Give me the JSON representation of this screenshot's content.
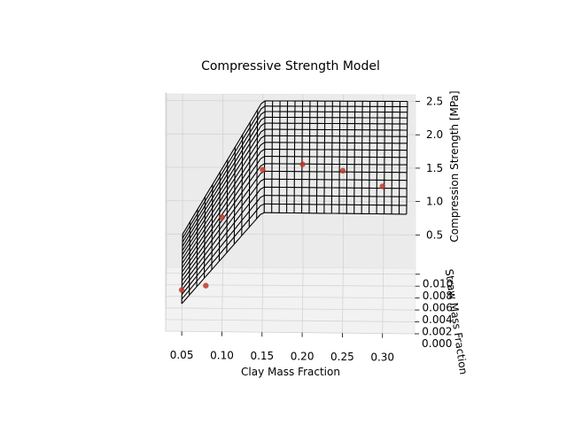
{
  "chart_data": {
    "type": "surface3d",
    "title": "Compressive Strength Model",
    "xlabel": "Clay Mass Fraction",
    "ylabel": "Straw Mass Fraction",
    "zlabel": "Compression Strength [MPa]",
    "x_ticks": [
      "0.05",
      "0.10",
      "0.15",
      "0.20",
      "0.25",
      "0.30"
    ],
    "y_ticks": [
      "0.000",
      "0.002",
      "0.004",
      "0.006",
      "0.008",
      "0.010"
    ],
    "z_ticks": [
      "0.5",
      "1.0",
      "1.5",
      "2.0",
      "2.5"
    ],
    "xlim": [
      0.03,
      0.34
    ],
    "ylim": [
      0.0,
      0.011
    ],
    "zlim": [
      0.0,
      2.6
    ],
    "grid": true,
    "surface": {
      "color": "#000000",
      "model": "piecewise-linear",
      "x_break": 0.15,
      "z_at_xmin_y0": 0.3,
      "z_at_xmin_ymax": 0.5,
      "z_plateau_y0": 1.3,
      "z_plateau_ymax": 2.5,
      "x_grid_count": 30,
      "y_grid_count": 16
    },
    "points": {
      "color": "#c0392b",
      "data": [
        {
          "x": 0.05,
          "y": 0.0,
          "z": 0.45
        },
        {
          "x": 0.08,
          "y": 0.0,
          "z": 0.5
        },
        {
          "x": 0.1,
          "y": 0.004,
          "z": 1.1
        },
        {
          "x": 0.15,
          "y": 0.007,
          "z": 1.6
        },
        {
          "x": 0.2,
          "y": 0.006,
          "z": 1.7
        },
        {
          "x": 0.25,
          "y": 0.005,
          "z": 1.65
        },
        {
          "x": 0.3,
          "y": 0.0,
          "z": 1.6
        }
      ]
    }
  }
}
